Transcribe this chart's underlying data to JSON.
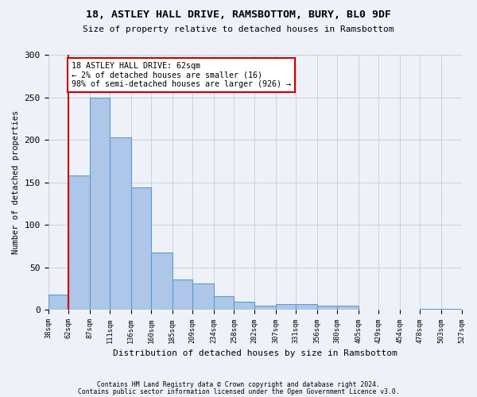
{
  "title_line1": "18, ASTLEY HALL DRIVE, RAMSBOTTOM, BURY, BL0 9DF",
  "title_line2": "Size of property relative to detached houses in Ramsbottom",
  "xlabel": "Distribution of detached houses by size in Ramsbottom",
  "ylabel": "Number of detached properties",
  "footnote1": "Contains HM Land Registry data © Crown copyright and database right 2024.",
  "footnote2": "Contains public sector information licensed under the Open Government Licence v3.0.",
  "annotation_title": "18 ASTLEY HALL DRIVE: 62sqm",
  "annotation_line1": "← 2% of detached houses are smaller (16)",
  "annotation_line2": "98% of semi-detached houses are larger (926) →",
  "property_size": 62,
  "bar_edges": [
    38,
    62,
    87,
    111,
    136,
    160,
    185,
    209,
    234,
    258,
    282,
    307,
    331,
    356,
    380,
    405,
    429,
    454,
    478,
    503,
    527
  ],
  "bar_heights": [
    18,
    158,
    250,
    203,
    144,
    68,
    36,
    31,
    16,
    10,
    5,
    7,
    7,
    5,
    5,
    0,
    0,
    0,
    1,
    1
  ],
  "bar_color": "#aec6e8",
  "bar_edge_color": "#5b9bd5",
  "marker_line_color": "#cc0000",
  "annotation_box_color": "#cc0000",
  "annotation_fill": "#ffffff",
  "grid_color": "#c8d0de",
  "background_color": "#eef2f8",
  "ylim": [
    0,
    300
  ],
  "yticks": [
    0,
    50,
    100,
    150,
    200,
    250,
    300
  ]
}
